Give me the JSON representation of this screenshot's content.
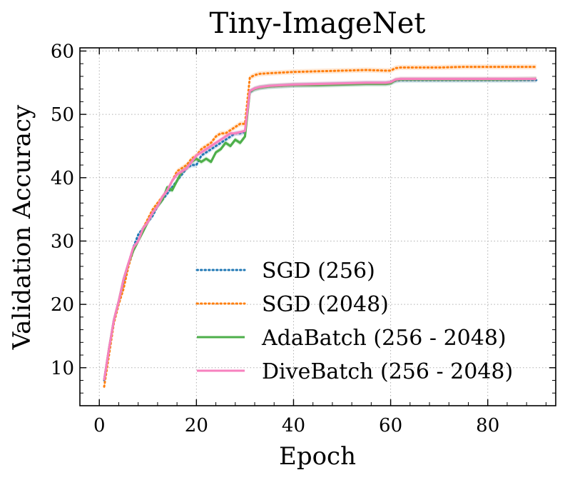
{
  "chart_data": {
    "type": "line",
    "title": "Tiny-ImageNet",
    "xlabel": "Epoch",
    "ylabel": "Validation Accuracy",
    "xlim": [
      -4,
      94
    ],
    "ylim": [
      4,
      60.5
    ],
    "xticks": [
      0,
      20,
      40,
      60,
      80
    ],
    "yticks": [
      10,
      20,
      30,
      40,
      50,
      60
    ],
    "grid": true,
    "legend": "lower-right",
    "series": [
      {
        "name": "SGD (256)",
        "color": "#1f77b4",
        "style": "dotted",
        "x": [
          1,
          2,
          3,
          4,
          5,
          6,
          7,
          8,
          9,
          10,
          11,
          12,
          13,
          14,
          15,
          16,
          17,
          18,
          19,
          20,
          21,
          22,
          23,
          24,
          25,
          26,
          27,
          28,
          29,
          30,
          31,
          32,
          33,
          35,
          40,
          45,
          50,
          55,
          59,
          60,
          61,
          62,
          65,
          70,
          75,
          80,
          85,
          90
        ],
        "y": [
          8,
          13,
          17.5,
          20.5,
          23.5,
          26.5,
          29,
          31,
          32,
          33,
          34,
          35.5,
          36.5,
          37.5,
          38.5,
          39.5,
          40.5,
          41.5,
          42,
          42,
          43.5,
          44,
          44.5,
          45,
          45.5,
          46,
          46.5,
          47,
          47,
          47.2,
          53.5,
          54,
          54.2,
          54.4,
          54.6,
          54.7,
          54.8,
          54.9,
          54.9,
          55,
          55.3,
          55.4,
          55.4,
          55.4,
          55.4,
          55.4,
          55.4,
          55.4
        ]
      },
      {
        "name": "SGD (2048)",
        "color": "#ff7f0e",
        "style": "dotted",
        "x": [
          1,
          2,
          3,
          4,
          5,
          6,
          7,
          8,
          9,
          10,
          11,
          12,
          13,
          14,
          15,
          16,
          17,
          18,
          19,
          20,
          21,
          22,
          23,
          24,
          25,
          26,
          27,
          28,
          29,
          30,
          31,
          32,
          33,
          35,
          40,
          45,
          50,
          55,
          59,
          60,
          61,
          62,
          65,
          70,
          75,
          80,
          85,
          90
        ],
        "y": [
          7,
          12,
          17,
          20,
          22.5,
          26,
          28.5,
          30,
          32,
          33.5,
          35,
          36,
          37,
          38,
          39.5,
          41,
          41.5,
          42,
          43,
          43.5,
          44.5,
          45,
          45.5,
          46.5,
          47,
          47,
          47.5,
          48,
          48.5,
          48.5,
          55.8,
          56.2,
          56.4,
          56.5,
          56.7,
          56.8,
          56.9,
          57,
          56.9,
          56.9,
          57.3,
          57.4,
          57.4,
          57.4,
          57.5,
          57.5,
          57.5,
          57.5
        ]
      },
      {
        "name": "AdaBatch (256 - 2048)",
        "color": "#4daf4a",
        "style": "solid",
        "x": [
          1,
          2,
          3,
          4,
          5,
          6,
          7,
          8,
          9,
          10,
          11,
          12,
          13,
          14,
          15,
          16,
          17,
          18,
          19,
          20,
          21,
          22,
          23,
          24,
          25,
          26,
          27,
          28,
          29,
          30,
          31,
          32,
          33,
          35,
          40,
          45,
          50,
          55,
          59,
          60,
          61,
          62,
          65,
          70,
          75,
          80,
          85,
          90
        ],
        "y": [
          8,
          13,
          17.5,
          20.5,
          24,
          26.5,
          28.5,
          30,
          31.5,
          33,
          34.5,
          35.5,
          36.5,
          38.5,
          38,
          39.5,
          41,
          41.5,
          42.5,
          43,
          42.5,
          43,
          42.5,
          44,
          44.5,
          45.5,
          45,
          46,
          45.5,
          46.5,
          53.6,
          54,
          54.2,
          54.4,
          54.6,
          54.6,
          54.7,
          54.8,
          54.8,
          54.9,
          55.4,
          55.5,
          55.5,
          55.5,
          55.5,
          55.5,
          55.5,
          55.6
        ]
      },
      {
        "name": "DiveBatch (256 - 2048)",
        "color": "#f781bf",
        "style": "solid",
        "x": [
          1,
          2,
          3,
          4,
          5,
          6,
          7,
          8,
          9,
          10,
          11,
          12,
          13,
          14,
          15,
          16,
          17,
          18,
          19,
          20,
          21,
          22,
          23,
          24,
          25,
          26,
          27,
          28,
          29,
          30,
          31,
          32,
          33,
          35,
          40,
          45,
          50,
          55,
          59,
          60,
          61,
          62,
          65,
          70,
          75,
          80,
          85,
          90
        ],
        "y": [
          8,
          13,
          17.5,
          20.5,
          24,
          26.5,
          29,
          30,
          32,
          33,
          34.5,
          35.5,
          37,
          38,
          39.5,
          40.5,
          41,
          41.5,
          42.5,
          43.5,
          44,
          44.5,
          45,
          45.5,
          46,
          46.5,
          47,
          47,
          47.2,
          47.4,
          53.7,
          54.1,
          54.3,
          54.5,
          54.7,
          54.8,
          54.9,
          55,
          55,
          55.1,
          55.5,
          55.6,
          55.6,
          55.6,
          55.6,
          55.6,
          55.6,
          55.6
        ]
      }
    ]
  }
}
